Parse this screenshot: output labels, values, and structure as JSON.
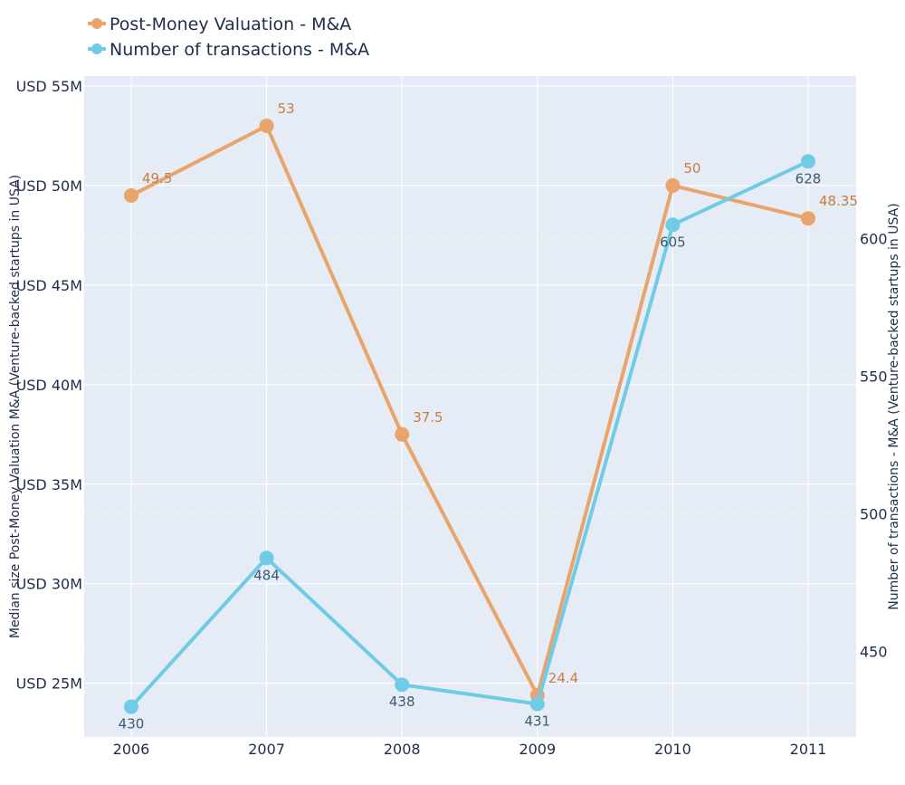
{
  "chart_data": {
    "type": "line",
    "categories": [
      "2006",
      "2007",
      "2008",
      "2009",
      "2010",
      "2011"
    ],
    "series": [
      {
        "name": "Post-Money Valuation - M&A",
        "axis": "left",
        "color": "#e9a46b",
        "values": [
          49.5,
          53,
          37.5,
          24.4,
          50,
          48.35
        ],
        "labels": [
          "49.5",
          "53",
          "37.5",
          "24.4",
          "50",
          "48.35"
        ]
      },
      {
        "name": "Number of transactions - M&A",
        "axis": "right",
        "color": "#6fcbe6",
        "values": [
          430,
          484,
          438,
          431,
          605,
          628
        ],
        "labels": [
          "430",
          "484",
          "438",
          "431",
          "605",
          "628"
        ]
      }
    ],
    "y_left": {
      "label": "Median size Post-Money Valuation M&A (Venture-backed startups in USA)",
      "range": [
        22.3,
        55.5
      ],
      "ticks": [
        25,
        30,
        35,
        40,
        45,
        50,
        55
      ],
      "tick_labels": [
        "USD 25M",
        "USD 30M",
        "USD 35M",
        "USD 40M",
        "USD 45M",
        "USD 50M",
        "USD 55M"
      ]
    },
    "y_right": {
      "label": "Number of transactions - M&A (Venture-backed startups in USA)",
      "range": [
        419,
        659
      ],
      "ticks": [
        450,
        500,
        550,
        600
      ],
      "tick_labels": [
        "450",
        "500",
        "550",
        "600"
      ]
    },
    "grid": true,
    "legend_position": "top-left",
    "plot_background": "#e5ecf6"
  }
}
